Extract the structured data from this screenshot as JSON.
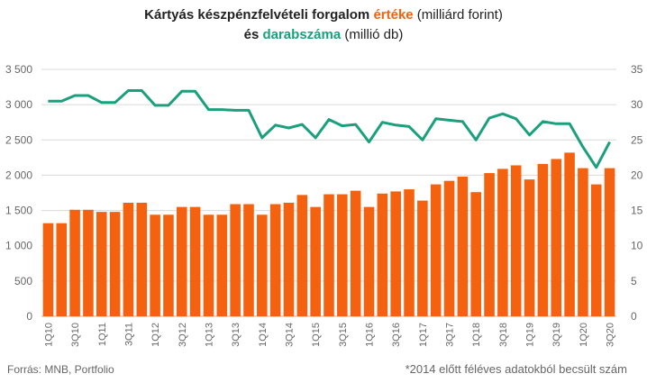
{
  "title": {
    "line1_pre": "Kártyás készpénzfelvételi forgalom ",
    "line1_accent": "értéke",
    "line1_post": " (milliárd forint)",
    "line2_pre": "és ",
    "line2_accent": "darabszáma",
    "line2_post": " (millió db)"
  },
  "source": "Forrás: MNB, Portfolio",
  "note": "*2014 előtt féléves adatokból becsült szám",
  "colors": {
    "bars": "#f4620f",
    "line": "#1aa07c",
    "grid": "#d9d9d9"
  },
  "chart_data": {
    "type": "bar+line",
    "categories": [
      "1Q10",
      "2Q10",
      "3Q10",
      "4Q10",
      "1Q11",
      "2Q11",
      "3Q11",
      "4Q11",
      "1Q12",
      "2Q12",
      "3Q12",
      "4Q12",
      "1Q13",
      "2Q13",
      "3Q13",
      "4Q13",
      "1Q14",
      "2Q14",
      "3Q14",
      "4Q14",
      "1Q15",
      "2Q15",
      "3Q15",
      "4Q15",
      "1Q16",
      "2Q16",
      "3Q16",
      "4Q16",
      "1Q17",
      "2Q17",
      "3Q17",
      "4Q17",
      "1Q18",
      "2Q18",
      "3Q18",
      "4Q18",
      "1Q19",
      "2Q19",
      "3Q19",
      "4Q19",
      "1Q20",
      "2Q20",
      "3Q20"
    ],
    "x_tick_labels": [
      "1Q10",
      "",
      "3Q10",
      "",
      "1Q11",
      "",
      "3Q11",
      "",
      "1Q12",
      "",
      "3Q12",
      "",
      "1Q13",
      "",
      "3Q13",
      "",
      "1Q14",
      "",
      "3Q14",
      "",
      "1Q15",
      "",
      "3Q15",
      "",
      "1Q16",
      "",
      "3Q16",
      "",
      "1Q17",
      "",
      "3Q17",
      "",
      "1Q18",
      "",
      "3Q18",
      "",
      "1Q19",
      "",
      "3Q19",
      "",
      "1Q20",
      "",
      "3Q20"
    ],
    "series": [
      {
        "type": "bar",
        "axis": "left",
        "values": [
          1320,
          1320,
          1510,
          1510,
          1480,
          1480,
          1610,
          1610,
          1440,
          1440,
          1550,
          1550,
          1440,
          1440,
          1590,
          1590,
          1440,
          1590,
          1610,
          1720,
          1550,
          1730,
          1730,
          1780,
          1550,
          1740,
          1770,
          1800,
          1640,
          1870,
          1920,
          1980,
          1760,
          2030,
          2090,
          2140,
          1940,
          2160,
          2230,
          2320,
          2100,
          1870,
          2100
        ]
      },
      {
        "type": "line",
        "axis": "right",
        "values": [
          30.5,
          30.5,
          31.3,
          31.3,
          30.3,
          30.3,
          32.0,
          32.0,
          29.9,
          29.9,
          31.9,
          31.9,
          29.3,
          29.3,
          29.2,
          29.2,
          25.3,
          27.1,
          26.7,
          27.2,
          25.3,
          27.9,
          27.0,
          27.2,
          24.7,
          27.5,
          27.1,
          26.9,
          25.0,
          28.0,
          27.8,
          27.6,
          25.0,
          28.1,
          28.7,
          28.0,
          25.7,
          27.6,
          27.3,
          27.3,
          24.0,
          21.1,
          24.7
        ]
      }
    ],
    "y_left": {
      "min": 0,
      "max": 3500,
      "ticks": [
        "0",
        "500",
        "1 000",
        "1 500",
        "2 000",
        "2 500",
        "3 000",
        "3 500"
      ]
    },
    "y_right": {
      "min": 0,
      "max": 35,
      "ticks": [
        "0",
        "5",
        "10",
        "15",
        "20",
        "25",
        "30",
        "35"
      ]
    },
    "grid": true
  }
}
